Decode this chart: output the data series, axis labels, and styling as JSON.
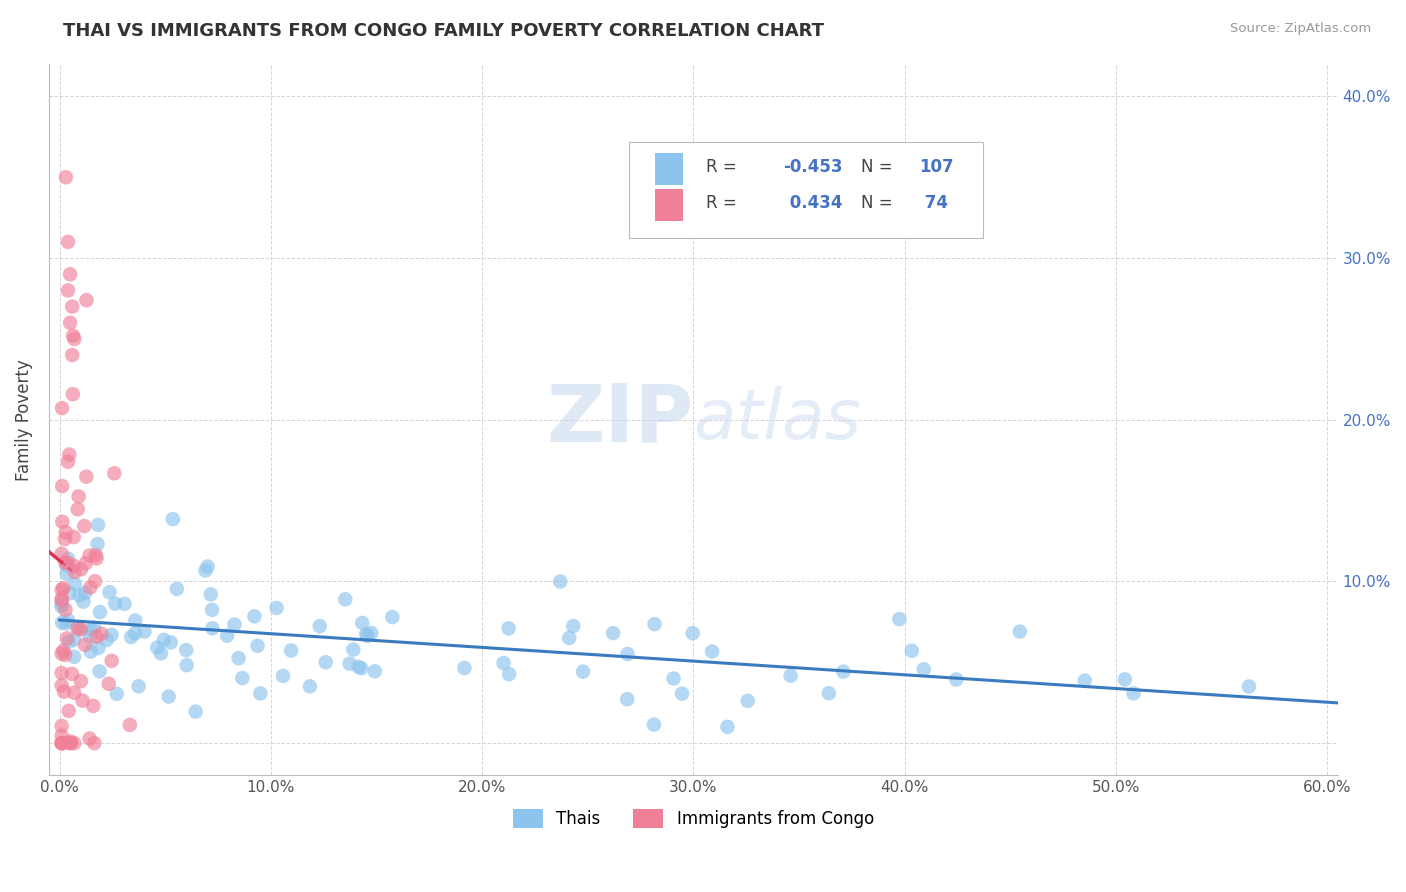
{
  "title": "THAI VS IMMIGRANTS FROM CONGO FAMILY POVERTY CORRELATION CHART",
  "source": "Source: ZipAtlas.com",
  "ylabel": "Family Poverty",
  "watermark_zip": "ZIP",
  "watermark_atlas": "atlas",
  "xlim": [
    -0.005,
    0.605
  ],
  "ylim": [
    -0.02,
    0.42
  ],
  "color_thai": "#8DC4ED",
  "color_congo": "#F08098",
  "trend_color_thai": "#3A7BBF",
  "trend_color_congo": "#E0305A",
  "grid_color": "#CCCCCC",
  "background_color": "#FFFFFF",
  "thai_seed": 42,
  "congo_seed": 17
}
